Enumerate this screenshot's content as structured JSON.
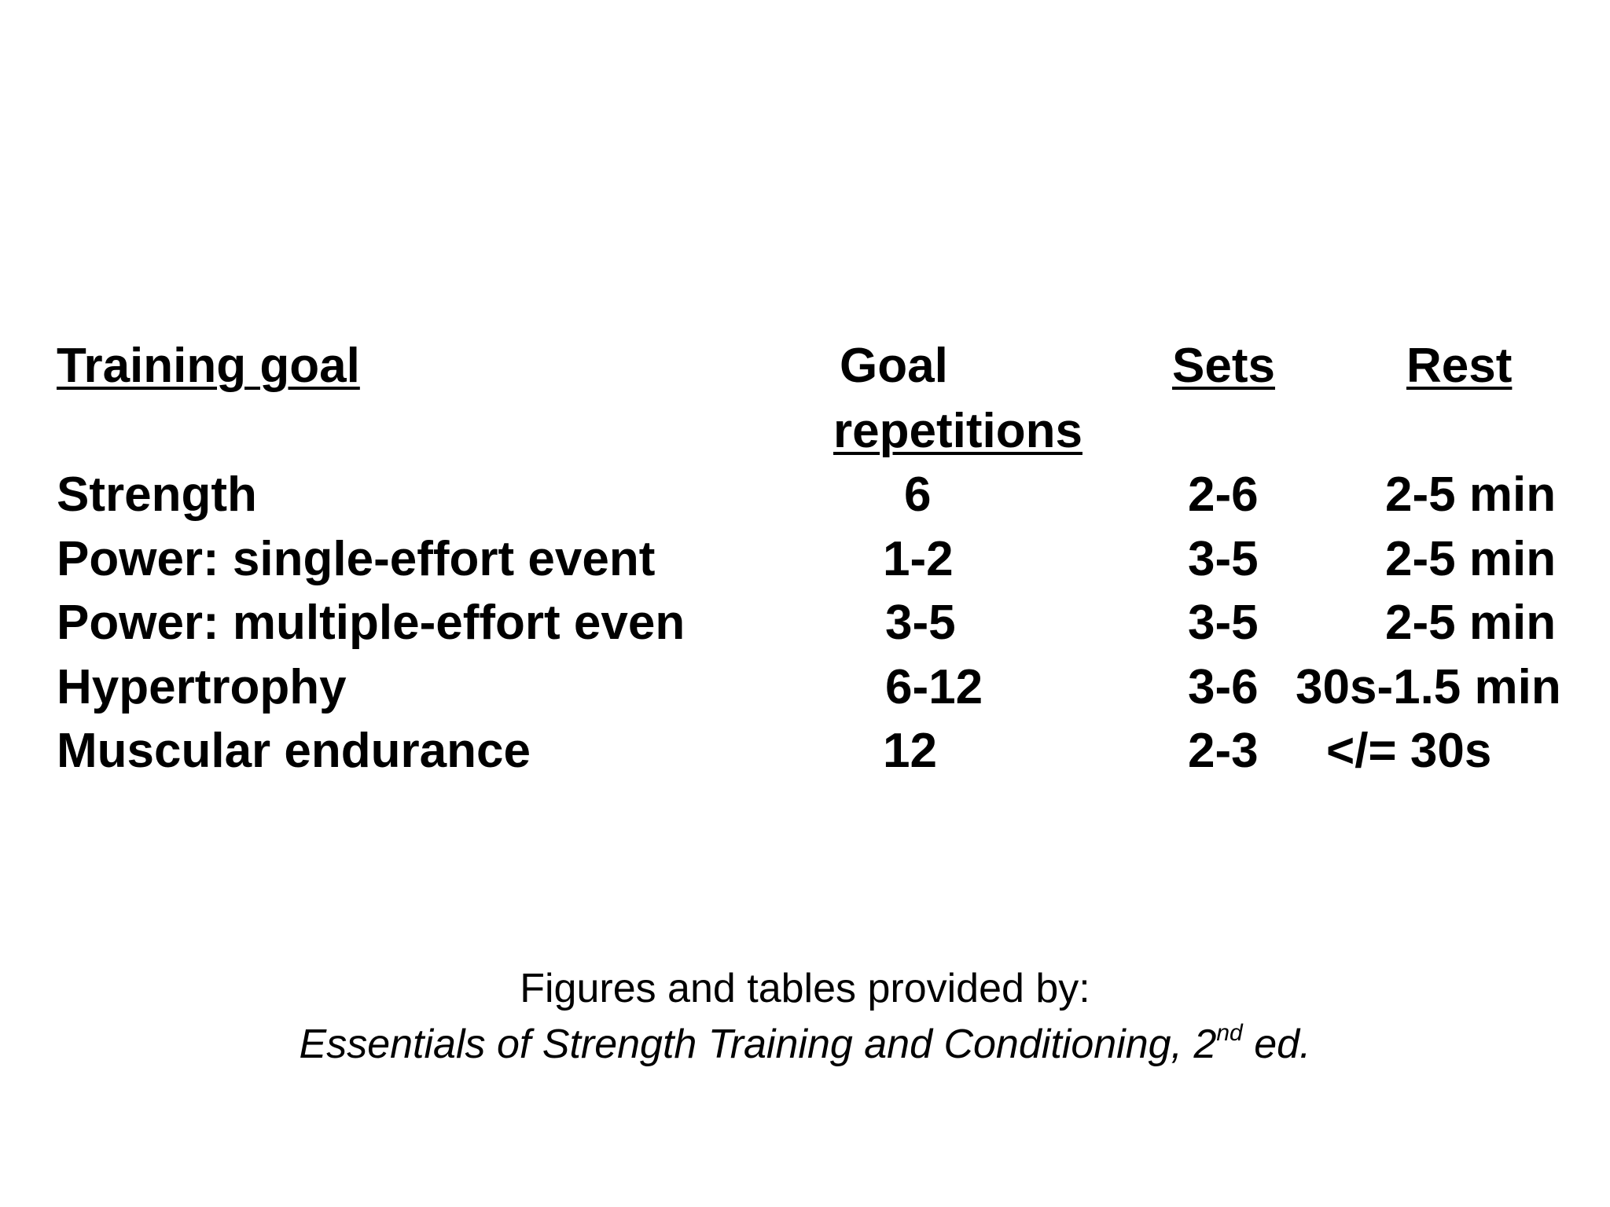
{
  "table": {
    "headers": [
      {
        "lines": [
          "Training goal"
        ]
      },
      {
        "lines": [
          "Goal",
          "repetitions"
        ]
      },
      {
        "lines": [
          "Sets"
        ]
      },
      {
        "lines": [
          "Rest"
        ]
      }
    ],
    "rows": [
      [
        "Strength",
        "6",
        "2-6",
        "2-5 min"
      ],
      [
        "Power: single-effort event",
        "1-2",
        "3-5",
        "2-5 min"
      ],
      [
        "Power: multiple-effort even",
        "3-5",
        "3-5",
        "2-5 min"
      ],
      [
        "Hypertrophy",
        "6-12",
        "3-6",
        "30s-1.5 min"
      ],
      [
        "Muscular endurance",
        "12",
        "2-3",
        "</= 30s"
      ]
    ]
  },
  "footer": {
    "credit": "Figures and tables provided by:",
    "source": {
      "text": "Essentials of Strength Training and Conditioning, 2",
      "superscript": "nd",
      "suffix": " ed."
    }
  }
}
